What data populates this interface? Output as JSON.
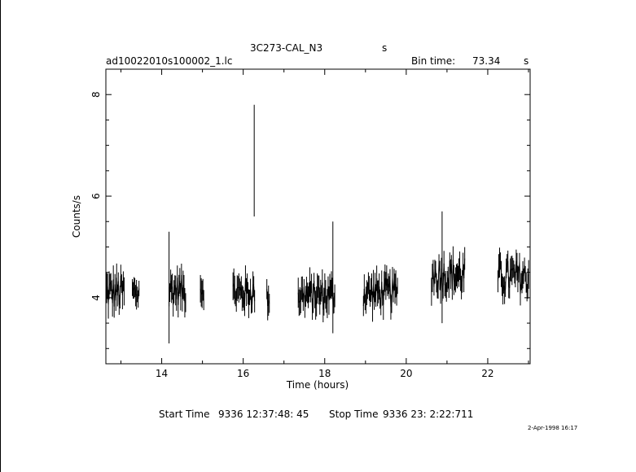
{
  "header": {
    "title": "3C273-CAL_N3",
    "title_suffix": "s",
    "filename": "ad10022010s100002_1.lc",
    "bin_time_label": "Bin time:",
    "bin_time_value": "73.34",
    "bin_time_unit": "s"
  },
  "footer": {
    "start_label": "Start Time",
    "start_value": "9336 12:37:48: 45",
    "stop_label": "Stop Time",
    "stop_value": "9336 23: 2:22:711",
    "date_stamp": "2-Apr-1998 16:17"
  },
  "chart_data": {
    "type": "scatter",
    "xlabel": "Time (hours)",
    "ylabel": "Counts/s",
    "xlim": [
      12.63,
      23.04
    ],
    "ylim": [
      2.7,
      8.5
    ],
    "x_ticks": [
      14,
      16,
      18,
      20,
      22
    ],
    "y_ticks": [
      4,
      6,
      8
    ],
    "series": [
      {
        "segments": [
          {
            "x": [
              12.63,
              13.08
            ],
            "mean": 4.1,
            "spread": 0.35
          },
          {
            "x": [
              13.28,
              13.45
            ],
            "mean": 4.1,
            "spread": 0.25
          },
          {
            "x": [
              14.18,
              14.6
            ],
            "mean": 4.15,
            "spread": 0.3
          },
          {
            "x": [
              14.95,
              15.05
            ],
            "mean": 4.2,
            "spread": 0.25
          },
          {
            "x": [
              15.75,
              16.3
            ],
            "mean": 4.1,
            "spread": 0.3
          },
          {
            "x": [
              16.58,
              16.65
            ],
            "mean": 4.0,
            "spread": 0.2
          },
          {
            "x": [
              17.35,
              18.25
            ],
            "mean": 4.05,
            "spread": 0.3
          },
          {
            "x": [
              18.95,
              19.8
            ],
            "mean": 4.1,
            "spread": 0.3
          },
          {
            "x": [
              20.62,
              21.45
            ],
            "mean": 4.45,
            "spread": 0.35
          },
          {
            "x": [
              22.25,
              23.02
            ],
            "mean": 4.4,
            "spread": 0.35
          }
        ],
        "peaks": [
          {
            "x": 16.27,
            "y": 7.8
          },
          {
            "x": 14.18,
            "y": 5.3
          },
          {
            "x": 18.2,
            "y": 5.5
          },
          {
            "x": 20.88,
            "y": 5.7
          }
        ]
      }
    ]
  }
}
